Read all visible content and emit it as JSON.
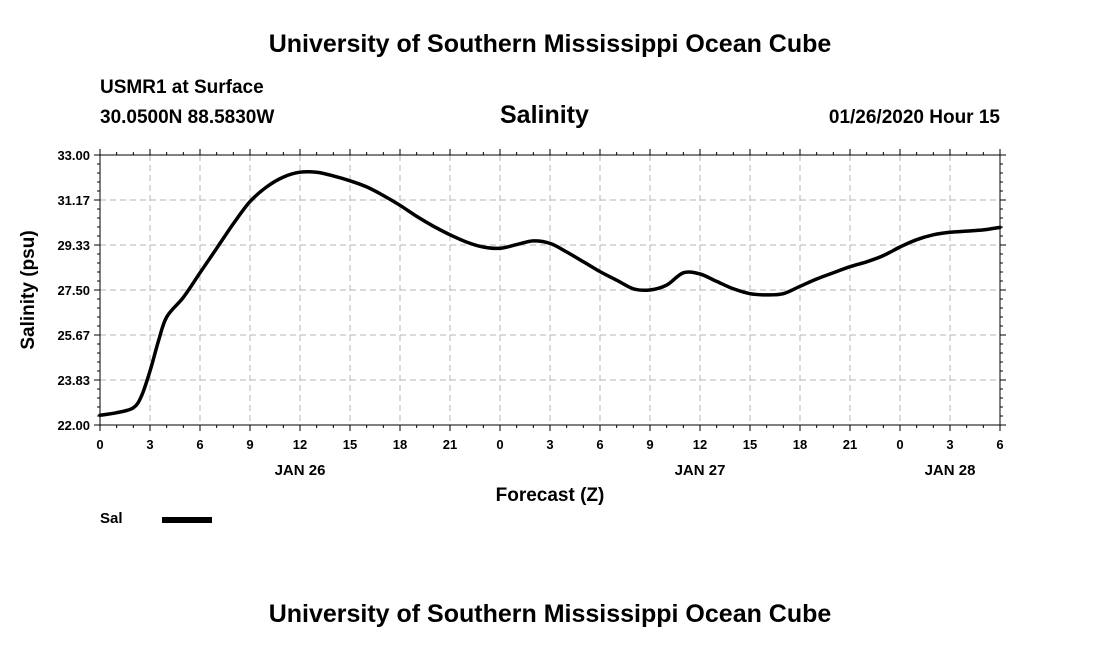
{
  "header": {
    "title": "University of Southern Mississippi Ocean Cube",
    "station": "USMR1 at Surface",
    "coordinates": "30.0500N 88.5830W",
    "chart_title": "Salinity",
    "datetime": "01/26/2020 Hour 15"
  },
  "footer": {
    "title": "University of Southern Mississippi Ocean Cube"
  },
  "legend": {
    "items": [
      {
        "label": "Sal",
        "color": "#000000"
      }
    ]
  },
  "chart_data": {
    "type": "line",
    "title": "Salinity",
    "xlabel": "Forecast (Z)",
    "ylabel": "Salinity (psu)",
    "xlim": [
      0,
      54
    ],
    "ylim": [
      22.0,
      33.0
    ],
    "y_ticks": [
      "22.00",
      "23.83",
      "25.67",
      "27.50",
      "29.33",
      "31.17",
      "33.00"
    ],
    "x_ticks": [
      "0",
      "3",
      "6",
      "9",
      "12",
      "15",
      "18",
      "21",
      "0",
      "3",
      "6",
      "9",
      "12",
      "15",
      "18",
      "21",
      "0",
      "3",
      "6"
    ],
    "date_labels": [
      {
        "label": "JAN 26",
        "x": 12
      },
      {
        "label": "JAN 27",
        "x": 36
      },
      {
        "label": "JAN 28",
        "x": 51
      }
    ],
    "grid": true,
    "series": [
      {
        "name": "Sal",
        "color": "#000000",
        "x": [
          0,
          1,
          2,
          2.5,
          3,
          3.5,
          4,
          5,
          6,
          7,
          8,
          9,
          10,
          11,
          12,
          13,
          14,
          15,
          16,
          17,
          18,
          19,
          20,
          21,
          22,
          23,
          24,
          25,
          26,
          27,
          28,
          29,
          30,
          31,
          32,
          33,
          34,
          35,
          36,
          37,
          38,
          39,
          40,
          41,
          42,
          43,
          44,
          45,
          46,
          47,
          48,
          49,
          50,
          51,
          52,
          53,
          54
        ],
        "y": [
          22.4,
          22.5,
          22.7,
          23.2,
          24.2,
          25.4,
          26.4,
          27.2,
          28.2,
          29.2,
          30.2,
          31.1,
          31.7,
          32.1,
          32.3,
          32.3,
          32.15,
          31.95,
          31.7,
          31.35,
          30.95,
          30.5,
          30.1,
          29.75,
          29.45,
          29.25,
          29.2,
          29.35,
          29.5,
          29.4,
          29.05,
          28.65,
          28.25,
          27.9,
          27.55,
          27.5,
          27.7,
          28.2,
          28.15,
          27.85,
          27.55,
          27.35,
          27.3,
          27.35,
          27.65,
          27.95,
          28.2,
          28.45,
          28.65,
          28.9,
          29.25,
          29.55,
          29.75,
          29.85,
          29.9,
          29.95,
          30.05
        ]
      }
    ]
  }
}
